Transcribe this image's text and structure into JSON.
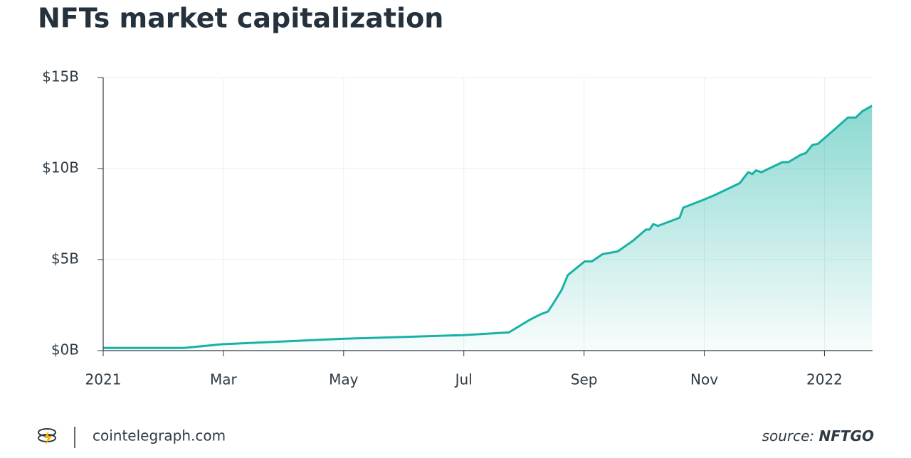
{
  "chart_data": {
    "type": "area",
    "title": "NFTs market capitalization",
    "x": [
      0,
      1.34,
      1.98,
      3.98,
      5.99,
      6.75,
      7.1,
      7.28,
      7.4,
      7.51,
      7.63,
      7.73,
      8.01,
      8.13,
      8.31,
      8.56,
      8.82,
      9.03,
      9.09,
      9.15,
      9.23,
      9.59,
      9.65,
      10.0,
      10.18,
      10.59,
      10.73,
      10.8,
      10.86,
      10.95,
      11.3,
      11.4,
      11.6,
      11.69,
      11.8,
      11.89,
      12.15,
      12.39,
      12.52,
      12.63,
      12.79
    ],
    "values": [
      0.15,
      0.15,
      0.35,
      0.65,
      0.85,
      1.0,
      1.7,
      2.0,
      2.15,
      2.7,
      3.35,
      4.15,
      4.9,
      4.9,
      5.3,
      5.45,
      6.05,
      6.65,
      6.65,
      6.95,
      6.85,
      7.3,
      7.85,
      8.3,
      8.55,
      9.2,
      9.8,
      9.7,
      9.9,
      9.8,
      10.35,
      10.35,
      10.75,
      10.85,
      11.3,
      11.35,
      12.1,
      12.8,
      12.8,
      13.15,
      13.45
    ],
    "color": "#18b2a5",
    "xlim": [
      0,
      12.8
    ],
    "xticks": [
      {
        "value": 0,
        "label": "2021"
      },
      {
        "value": 2,
        "label": "Mar"
      },
      {
        "value": 4,
        "label": "May"
      },
      {
        "value": 6,
        "label": "Jul"
      },
      {
        "value": 8,
        "label": "Sep"
      },
      {
        "value": 10,
        "label": "Nov"
      },
      {
        "value": 12,
        "label": "2022"
      }
    ],
    "ylim": [
      0,
      15
    ],
    "yticks": [
      {
        "value": 0,
        "label": "$0B"
      },
      {
        "value": 5,
        "label": "$5B"
      },
      {
        "value": 10,
        "label": "$10B"
      },
      {
        "value": 15,
        "label": "$15B"
      }
    ],
    "grid": true,
    "site": "cointelegraph.com",
    "source_prefix": "source:",
    "source": "NFTGO"
  }
}
